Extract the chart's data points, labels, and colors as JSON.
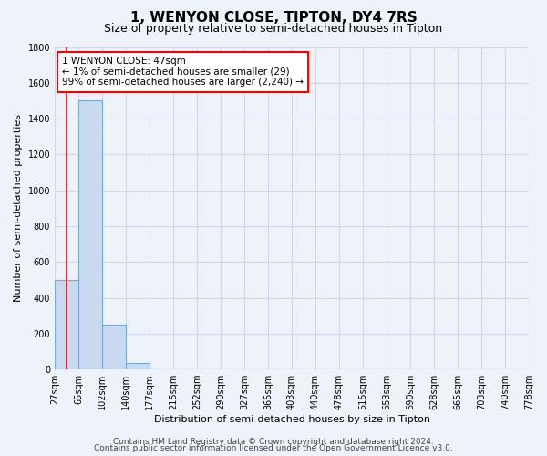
{
  "title": "1, WENYON CLOSE, TIPTON, DY4 7RS",
  "subtitle": "Size of property relative to semi-detached houses in Tipton",
  "xlabel": "Distribution of semi-detached houses by size in Tipton",
  "ylabel": "Number of semi-detached properties",
  "bin_labels": [
    "27sqm",
    "65sqm",
    "102sqm",
    "140sqm",
    "177sqm",
    "215sqm",
    "252sqm",
    "290sqm",
    "327sqm",
    "365sqm",
    "403sqm",
    "440sqm",
    "478sqm",
    "515sqm",
    "553sqm",
    "590sqm",
    "628sqm",
    "665sqm",
    "703sqm",
    "740sqm",
    "778sqm"
  ],
  "bar_heights": [
    500,
    1500,
    250,
    35,
    0,
    0,
    0,
    0,
    0,
    0,
    0,
    0,
    0,
    0,
    0,
    0,
    0,
    0,
    0,
    0
  ],
  "bar_color": "#c9d9f0",
  "bar_edge_color": "#7aaad0",
  "ylim": [
    0,
    1800
  ],
  "yticks": [
    0,
    200,
    400,
    600,
    800,
    1000,
    1200,
    1400,
    1600,
    1800
  ],
  "property_label": "1 WENYON CLOSE: 47sqm",
  "pct_smaller": 1,
  "pct_smaller_count": 29,
  "pct_larger": 99,
  "pct_larger_count": 2240,
  "red_line_x": 0.5,
  "footer_line1": "Contains HM Land Registry data © Crown copyright and database right 2024.",
  "footer_line2": "Contains public sector information licensed under the Open Government Licence v3.0.",
  "background_color": "#eef2f9",
  "grid_color": "#d0d8e8",
  "title_fontsize": 11,
  "subtitle_fontsize": 9,
  "axis_label_fontsize": 8,
  "tick_fontsize": 7,
  "footer_fontsize": 6.5,
  "ann_fontsize": 7.5
}
